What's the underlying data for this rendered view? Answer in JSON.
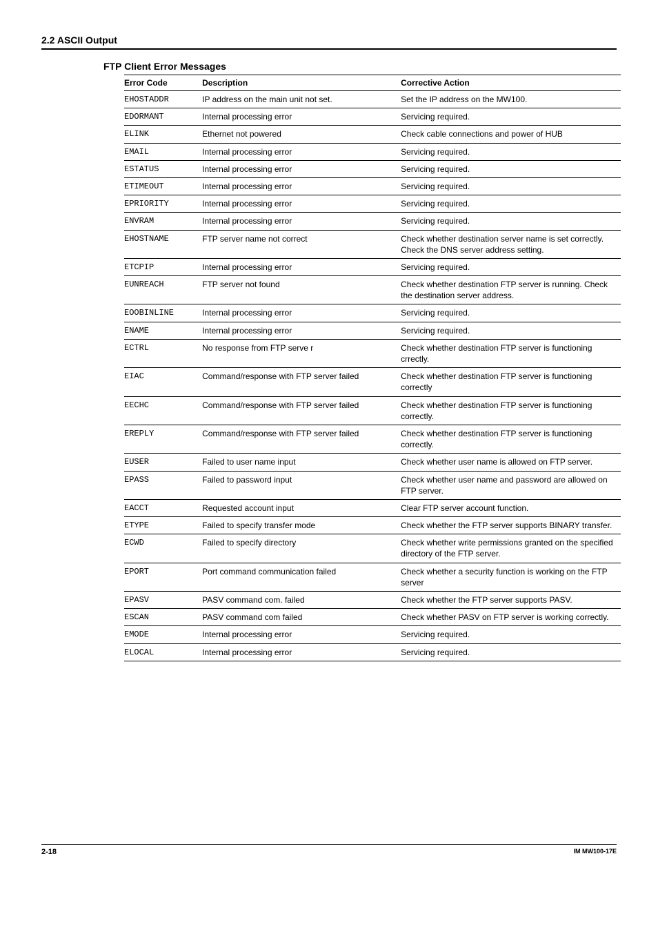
{
  "section_header": "2.2  ASCII Output",
  "table_title": "FTP Client Error Messages",
  "columns": [
    "Error Code",
    "Description",
    "Corrective Action"
  ],
  "rows": [
    {
      "code": "EHOSTADDR",
      "desc": "IP address on the main unit not set.",
      "action": "Set the IP address on the MW100."
    },
    {
      "code": "EDORMANT",
      "desc": "Internal processing error",
      "action": "Servicing required."
    },
    {
      "code": "ELINK",
      "desc": "Ethernet not powered",
      "action": "Check cable connections and  power of HUB"
    },
    {
      "code": "EMAIL",
      "desc": "Internal processing error",
      "action": "Servicing required."
    },
    {
      "code": "ESTATUS",
      "desc": "Internal processing error",
      "action": "Servicing required."
    },
    {
      "code": "ETIMEOUT",
      "desc": "Internal processing error",
      "action": "Servicing required."
    },
    {
      "code": "EPRIORITY",
      "desc": "Internal processing error",
      "action": "Servicing required."
    },
    {
      "code": "ENVRAM",
      "desc": "Internal processing error",
      "action": "Servicing required."
    },
    {
      "code": "EHOSTNAME",
      "desc": "FTP server name not correct",
      "action": "Check whether destination server name is set correctly. Check the DNS server address setting."
    },
    {
      "code": "ETCPIP",
      "desc": "Internal processing error",
      "action": "Servicing required."
    },
    {
      "code": "EUNREACH",
      "desc": "FTP server not found",
      "action": "Check whether destination FTP server is running. Check the destination server address."
    },
    {
      "code": "EOOBINLINE",
      "desc": "Internal processing error",
      "action": "Servicing required."
    },
    {
      "code": "ENAME",
      "desc": "Internal processing error",
      "action": "Servicing required."
    },
    {
      "code": "ECTRL",
      "desc": "No response from FTP serve r",
      "action": "Check whether destination FTP server is functioning crrectly."
    },
    {
      "code": "EIAC",
      "desc": "Command/response with FTP server failed",
      "action": "Check whether destination FTP server is functioning correctly"
    },
    {
      "code": "EECHC",
      "desc": "Command/response with FTP server failed",
      "action": "Check whether destination FTP  server is functioning correctly."
    },
    {
      "code": "EREPLY",
      "desc": "Command/response with FTP  server failed",
      "action": "Check whether destination FTP server is functioning correctly."
    },
    {
      "code": "EUSER",
      "desc": "Failed to user name input",
      "action": "Check whether user name is allowed on FTP server."
    },
    {
      "code": "EPASS",
      "desc": "Failed to password input",
      "action": "Check whether user name and password are allowed on FTP server."
    },
    {
      "code": "EACCT",
      "desc": "Requested account input",
      "action": "Clear FTP server account function."
    },
    {
      "code": "ETYPE",
      "desc": "Failed to specify transfer mode",
      "action": "Check whether the FTP server supports BINARY transfer."
    },
    {
      "code": "ECWD",
      "desc": "Failed to specify directory",
      "action": "Check whether write permissions granted on the  specified directory of the FTP server."
    },
    {
      "code": "EPORT",
      "desc": "Port command communication failed",
      "action": "Check whether a security function is working on the  FTP server"
    },
    {
      "code": "EPASV",
      "desc": "PASV command com. failed",
      "action": "Check whether the FTP server supports PASV."
    },
    {
      "code": "ESCAN",
      "desc": "PASV command com failed",
      "action": "Check whether PASV on FTP server is working correctly."
    },
    {
      "code": "EMODE",
      "desc": "Internal processing error",
      "action": "Servicing required."
    },
    {
      "code": "ELOCAL",
      "desc": "Internal processing error",
      "action": "Servicing required."
    }
  ],
  "footer": {
    "page": "2-18",
    "docid": "IM MW100-17E"
  },
  "style": {
    "body_font_size": 12,
    "header_font_size": 14,
    "code_font_family": "Courier New",
    "text_color": "#000000",
    "background_color": "#ffffff",
    "border_color": "#000000"
  }
}
